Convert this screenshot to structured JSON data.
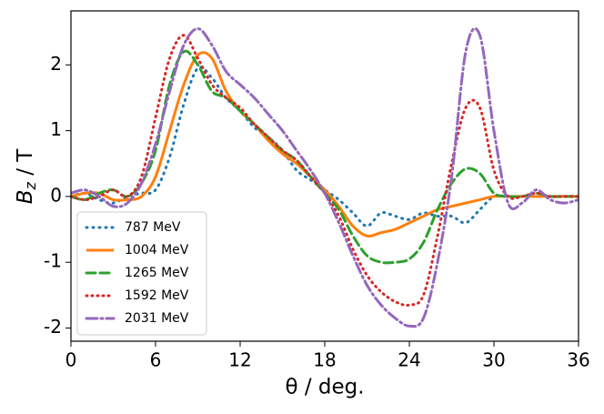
{
  "chart_data": {
    "type": "line",
    "ylabel": {
      "symbol": "B",
      "subscript": "z",
      "unit": " / T"
    },
    "xlabel": "θ / deg.",
    "x": [
      0,
      1,
      2,
      3,
      4,
      5,
      6,
      7,
      8,
      9,
      10,
      11,
      12,
      13,
      14,
      15,
      16,
      17,
      18,
      19,
      20,
      21,
      22,
      23,
      24,
      25,
      26,
      27,
      28,
      29,
      30,
      31,
      32,
      33,
      34,
      35,
      36
    ],
    "series": [
      {
        "name": "787 MeV",
        "color": "#1f77b4",
        "dash": "1,6",
        "values": [
          0,
          0.05,
          -0.05,
          -0.1,
          0,
          0.05,
          0.1,
          0.6,
          1.4,
          1.95,
          1.8,
          1.5,
          1.3,
          1.05,
          0.9,
          0.7,
          0.4,
          0.25,
          0.1,
          -0.05,
          -0.25,
          -0.45,
          -0.25,
          -0.3,
          -0.35,
          -0.25,
          -0.3,
          -0.3,
          -0.4,
          -0.2,
          0,
          0,
          0,
          0,
          0,
          0,
          0
        ]
      },
      {
        "name": "1004 MeV",
        "color": "#ff7f0e",
        "dash": "none",
        "values": [
          0,
          0.05,
          0.05,
          -0.05,
          -0.05,
          0,
          0.3,
          1.0,
          1.7,
          2.15,
          2.1,
          1.6,
          1.3,
          1.1,
          0.85,
          0.65,
          0.5,
          0.3,
          0.1,
          -0.15,
          -0.45,
          -0.6,
          -0.55,
          -0.5,
          -0.4,
          -0.3,
          -0.2,
          -0.15,
          -0.1,
          -0.05,
          0,
          0,
          0,
          0,
          0,
          0,
          0
        ]
      },
      {
        "name": "1265 MeV",
        "color": "#2ca02c",
        "dash": "10,5",
        "values": [
          0,
          -0.05,
          0.05,
          0.1,
          0,
          0.2,
          0.7,
          1.7,
          2.2,
          2.0,
          1.6,
          1.5,
          1.3,
          1.1,
          0.9,
          0.7,
          0.55,
          0.3,
          0.05,
          -0.2,
          -0.6,
          -0.9,
          -1.0,
          -1.0,
          -0.95,
          -0.7,
          -0.2,
          0.2,
          0.42,
          0.35,
          0.05,
          0,
          0,
          0.05,
          0,
          0,
          0
        ]
      },
      {
        "name": "1592 MeV",
        "color": "#d62728",
        "dash": "1,5",
        "values": [
          0,
          -0.05,
          0,
          0.1,
          0,
          0.3,
          1.2,
          2.1,
          2.45,
          2.1,
          1.7,
          1.5,
          1.35,
          1.1,
          0.9,
          0.7,
          0.55,
          0.3,
          0.05,
          -0.3,
          -0.8,
          -1.2,
          -1.45,
          -1.6,
          -1.65,
          -1.5,
          -0.6,
          0.5,
          1.35,
          1.35,
          0.4,
          0,
          0,
          0.05,
          0,
          0,
          0
        ]
      },
      {
        "name": "2031 MeV",
        "color": "#9467bd",
        "dash": "12,4,2,4",
        "values": [
          0.05,
          0.1,
          0,
          -0.15,
          -0.1,
          0.2,
          0.8,
          1.6,
          2.3,
          2.55,
          2.3,
          1.9,
          1.7,
          1.5,
          1.25,
          1.0,
          0.7,
          0.4,
          0.05,
          -0.4,
          -0.9,
          -1.35,
          -1.65,
          -1.85,
          -1.97,
          -1.85,
          -1.0,
          0.3,
          2.2,
          2.45,
          1.0,
          -0.1,
          -0.1,
          0.1,
          -0.05,
          -0.1,
          -0.05
        ]
      }
    ],
    "xlim": [
      0,
      36
    ],
    "xticks": [
      0,
      6,
      12,
      18,
      24,
      30,
      36
    ],
    "ylim": [
      -2.2,
      2.82
    ],
    "yticks": [
      -2,
      -1,
      0,
      1,
      2
    ],
    "legend": "lower left"
  }
}
